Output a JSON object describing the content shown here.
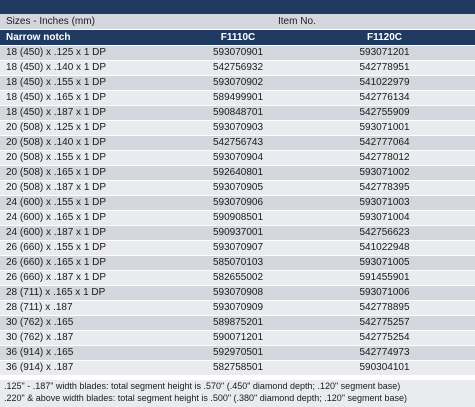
{
  "header": {
    "sizes_label": "Sizes - Inches (mm)",
    "item_label": "Item No.",
    "notch_label": "Narrow notch",
    "col1": "F1110C",
    "col2": "F1120C"
  },
  "rows": [
    {
      "size": "18 (450) x .125 x 1 DP",
      "f1110c": "593070901",
      "f1120c": "593071201"
    },
    {
      "size": "18 (450) x .140 x 1 DP",
      "f1110c": "542756932",
      "f1120c": "542778951"
    },
    {
      "size": "18 (450) x .155 x 1 DP",
      "f1110c": "593070902",
      "f1120c": "541022979"
    },
    {
      "size": "18 (450) x .165 x 1 DP",
      "f1110c": "589499901",
      "f1120c": "542776134"
    },
    {
      "size": "18 (450) x .187 x 1 DP",
      "f1110c": "590848701",
      "f1120c": "542755909"
    },
    {
      "size": "20 (508) x .125 x 1 DP",
      "f1110c": "593070903",
      "f1120c": "593071001"
    },
    {
      "size": "20 (508) x .140 x 1 DP",
      "f1110c": "542756743",
      "f1120c": "542777064"
    },
    {
      "size": "20 (508) x .155 x 1 DP",
      "f1110c": "593070904",
      "f1120c": "542778012"
    },
    {
      "size": "20 (508) x .165 x 1 DP",
      "f1110c": "592640801",
      "f1120c": "593071002"
    },
    {
      "size": "20 (508) x .187 x 1 DP",
      "f1110c": "593070905",
      "f1120c": "542778395"
    },
    {
      "size": "24 (600) x .155 x 1 DP",
      "f1110c": "593070906",
      "f1120c": "593071003"
    },
    {
      "size": "24 (600) x .165 x 1 DP",
      "f1110c": "590908501",
      "f1120c": "593071004"
    },
    {
      "size": "24 (600) x .187 x 1 DP",
      "f1110c": "590937001",
      "f1120c": "542756623"
    },
    {
      "size": "26 (660) x .155 x 1 DP",
      "f1110c": "593070907",
      "f1120c": "541022948"
    },
    {
      "size": "26 (660) x .165 x 1 DP",
      "f1110c": "585070103",
      "f1120c": "593071005"
    },
    {
      "size": "26 (660) x .187 x 1 DP",
      "f1110c": "582655002",
      "f1120c": "591455901"
    },
    {
      "size": "28 (711) x .165 x 1 DP",
      "f1110c": "593070908",
      "f1120c": "593071006"
    },
    {
      "size": "28 (711) x .187",
      "f1110c": "593070909",
      "f1120c": "542778895"
    },
    {
      "size": "30 (762) x .165",
      "f1110c": "589875201",
      "f1120c": "542775257"
    },
    {
      "size": "30 (762) x .187",
      "f1110c": "590071201",
      "f1120c": "542775254"
    },
    {
      "size": "36 (914) x .165",
      "f1110c": "592970501",
      "f1120c": "542774973"
    },
    {
      "size": "36 (914) x .187",
      "f1110c": "582758501",
      "f1120c": "590304101"
    }
  ],
  "notes": {
    "line1": ".125\" - .187\" width blades: total segment height is .570\" (.450\" diamond depth; .120\" segment base)",
    "line2": ".220\" & above width blades: total segment height is .500\" (.380\" diamond depth; .120\" segment base)"
  }
}
